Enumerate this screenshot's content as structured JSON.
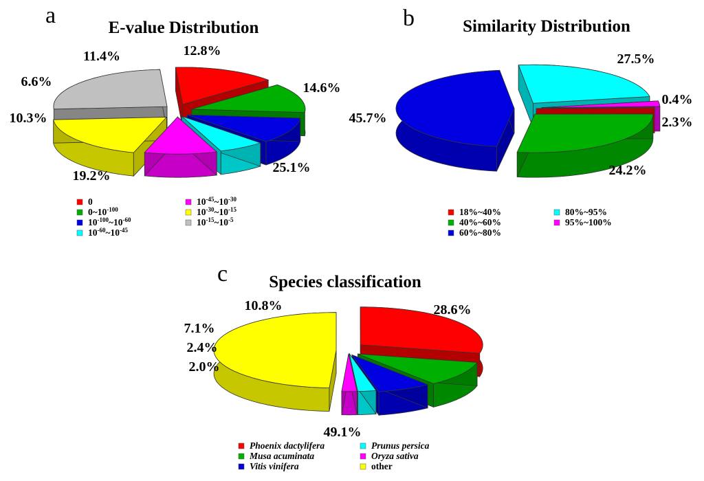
{
  "chart_data": [
    {
      "type": "pie",
      "panel_letter": "a",
      "title": "E-value Distribution",
      "categories": [
        "0",
        "0~10^-100",
        "10^-100~10^-60",
        "10^-60~10^-45",
        "10^-45~10^-30",
        "10^-30~10^-15",
        "10^-15~10^-5"
      ],
      "values": [
        14.6,
        12.8,
        11.4,
        6.6,
        10.3,
        19.2,
        25.1
      ],
      "value_labels": [
        "14.6%",
        "12.8%",
        "11.4%",
        "6.6%",
        "10.3%",
        "19.2%",
        "25.1%"
      ],
      "legend": [
        {
          "base": "0",
          "sup": "",
          "rest": "",
          "sup2": "",
          "color": "#ff0000"
        },
        {
          "base": "0~10",
          "sup": "-100",
          "rest": "",
          "sup2": "",
          "color": "#00b000"
        },
        {
          "base": "10",
          "sup": "-100",
          "rest": "~10",
          "sup2": "-60",
          "color": "#0000e0"
        },
        {
          "base": "10",
          "sup": "-60",
          "rest": "~10",
          "sup2": "-45",
          "color": "#00ffff"
        },
        {
          "base": "10",
          "sup": "-45",
          "rest": "~10",
          "sup2": "-30",
          "color": "#ff00ff"
        },
        {
          "base": "10",
          "sup": "-30",
          "rest": "~10",
          "sup2": "-15",
          "color": "#ffff00"
        },
        {
          "base": "10",
          "sup": "-15",
          "rest": "~10",
          "sup2": "-5",
          "color": "#c0c0c0"
        }
      ],
      "legend_placement": "bottom",
      "italic_legend": false
    },
    {
      "type": "pie",
      "panel_letter": "b",
      "title": "Similarity Distribution",
      "categories": [
        "18%~40%",
        "40%~60%",
        "60%~80%",
        "80%~95%",
        "95%~100%"
      ],
      "values": [
        0.4,
        27.5,
        45.7,
        24.2,
        2.3
      ],
      "value_labels": [
        "0.4%",
        "27.5%",
        "45.7%",
        "24.2%",
        "2.3%"
      ],
      "legend": [
        {
          "base": "18%~40%",
          "color": "#ff0000"
        },
        {
          "base": "40%~60%",
          "color": "#00b000"
        },
        {
          "base": "60%~80%",
          "color": "#0000e0"
        },
        {
          "base": "80%~95%",
          "color": "#00ffff"
        },
        {
          "base": "95%~100%",
          "color": "#ff00ff"
        }
      ],
      "legend_placement": "bottom",
      "italic_legend": false
    },
    {
      "type": "pie",
      "panel_letter": "c",
      "title": "Species classification",
      "categories": [
        "Phoenix dactylifera",
        "Musa acuminata",
        "Vitis vinifera",
        "Prunus persica",
        "Oryza sativa",
        "other"
      ],
      "values": [
        28.6,
        10.8,
        7.1,
        2.4,
        2.0,
        49.1
      ],
      "value_labels": [
        "28.6%",
        "10.8%",
        "7.1%",
        "2.4%",
        "2.0%",
        "49.1%"
      ],
      "legend": [
        {
          "base": "Phoenix dactylifera",
          "color": "#ff0000",
          "italic": true
        },
        {
          "base": "Musa acuminata",
          "color": "#00b000",
          "italic": true
        },
        {
          "base": "Vitis vinifera",
          "color": "#0000e0",
          "italic": true
        },
        {
          "base": "Prunus persica",
          "color": "#00ffff",
          "italic": true
        },
        {
          "base": "Oryza sativa",
          "color": "#ff00ff",
          "italic": true
        },
        {
          "base": "other",
          "color": "#ffff00",
          "italic": false
        }
      ],
      "legend_placement": "bottom",
      "italic_legend": true
    }
  ]
}
